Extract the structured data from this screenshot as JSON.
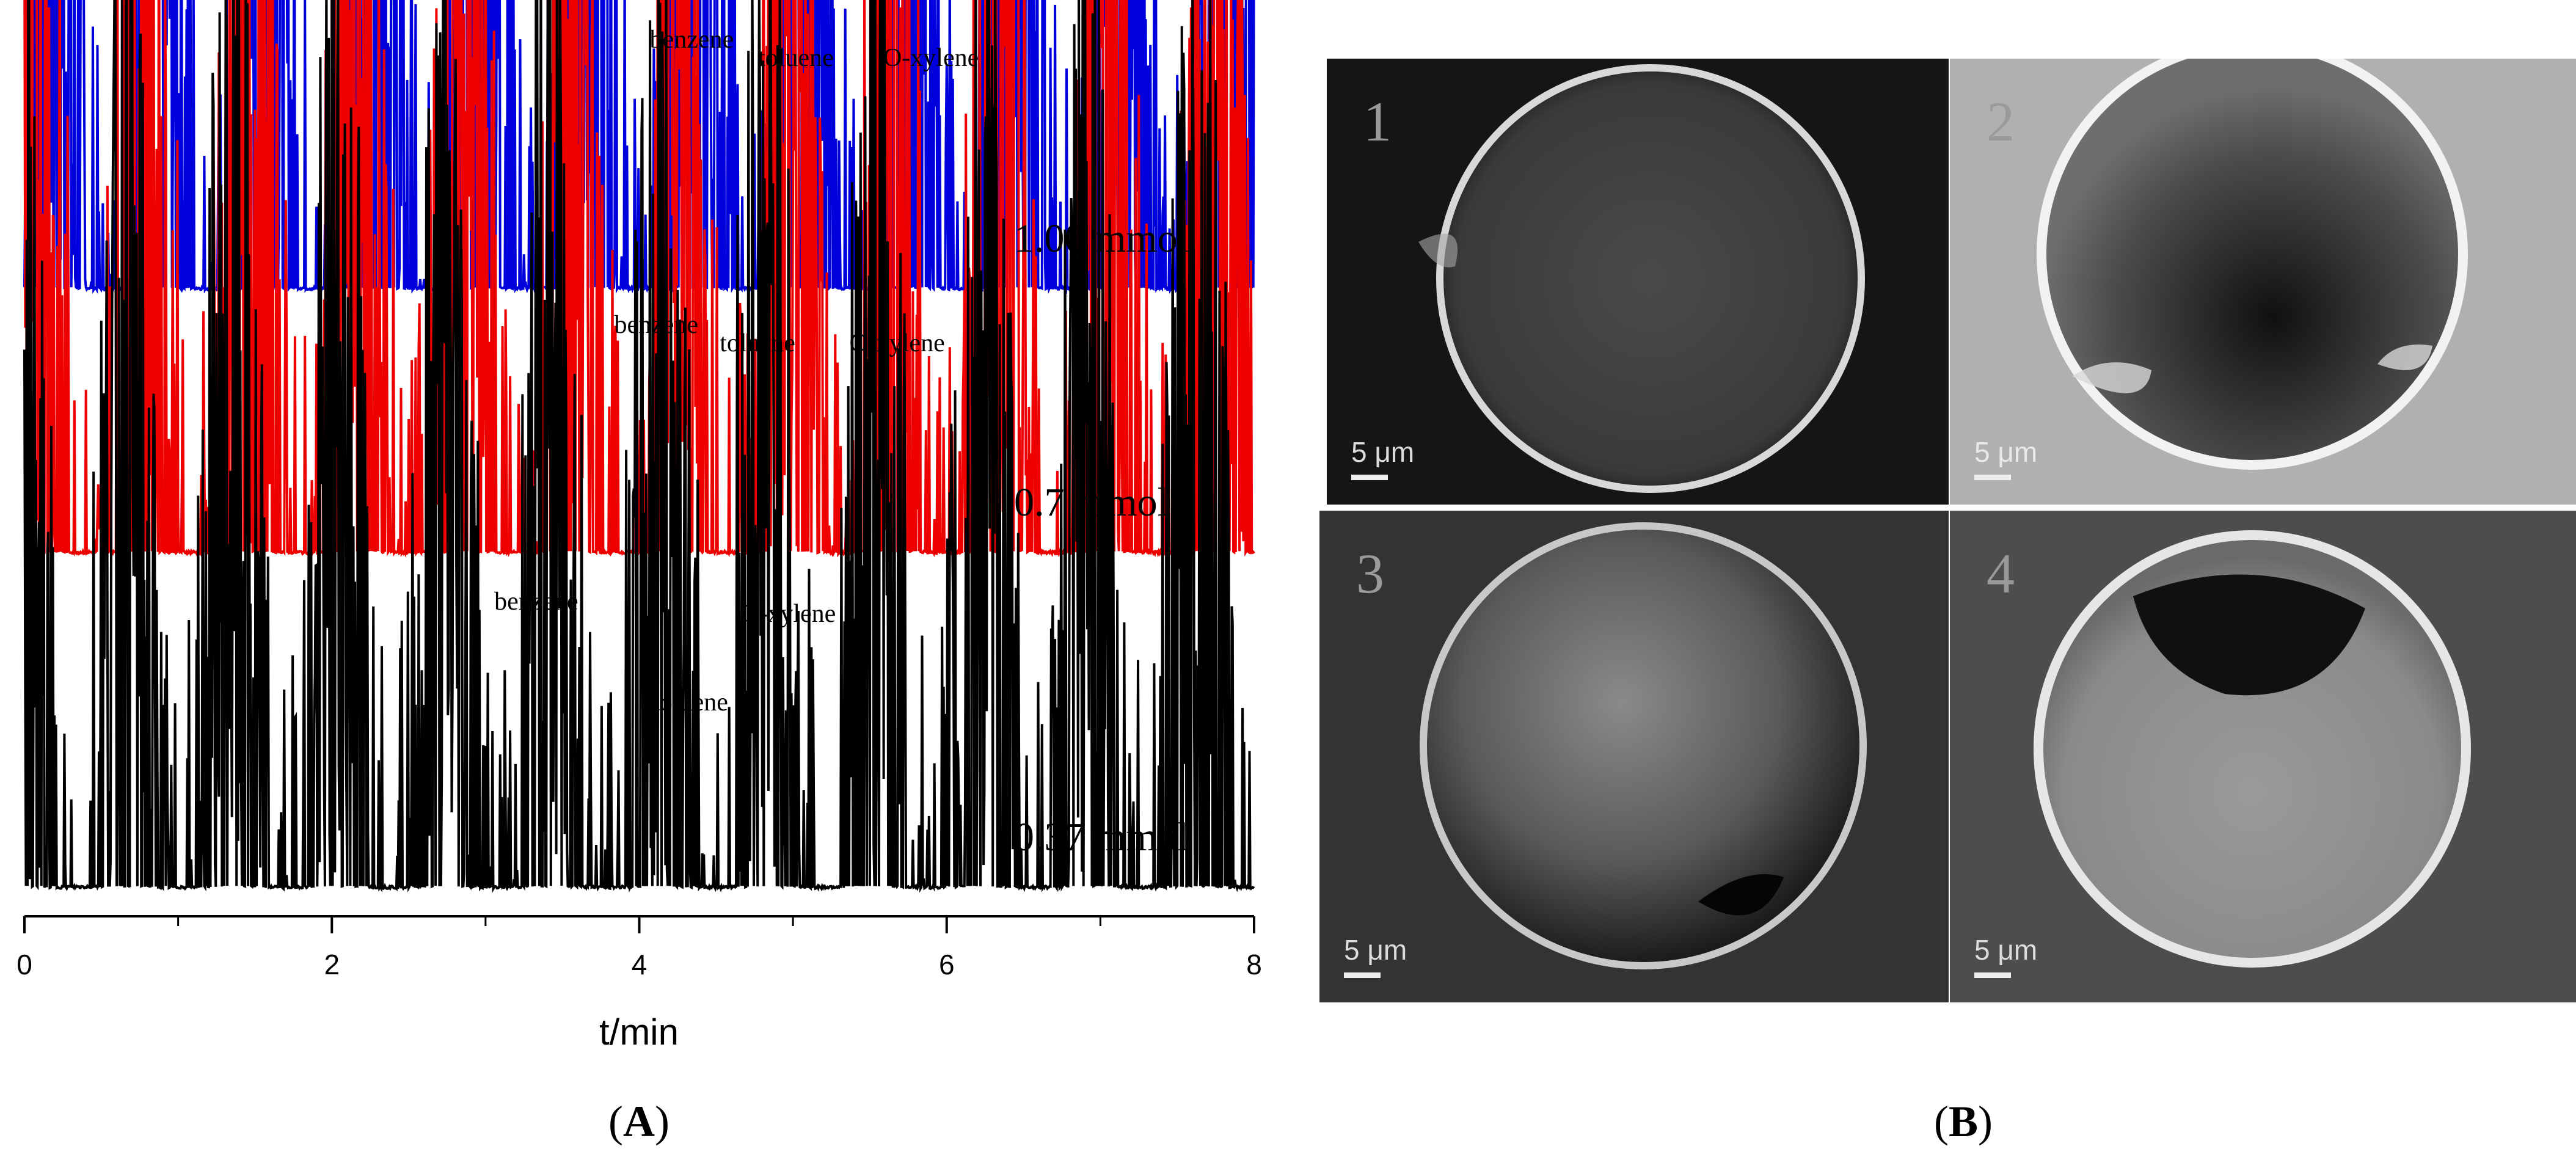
{
  "panel_labels": {
    "a": "A",
    "b": "B"
  },
  "chart_data": {
    "type": "line",
    "xlabel": "t/min",
    "ylabel": "",
    "xlim": [
      0,
      8
    ],
    "xticks": [
      0,
      2,
      4,
      6,
      8
    ],
    "xtick_labels": [
      "0",
      "2",
      "4",
      "6",
      "8"
    ],
    "series": [
      {
        "name": "1.00 mmol",
        "color": "#0000dd",
        "peaks": [
          {
            "label": "benzene",
            "t": 4.6,
            "height": 1.0
          },
          {
            "label": "toluene",
            "t": 4.9,
            "height": 1.0
          },
          {
            "label": "O-xylene",
            "t": 5.6,
            "height": 1.0
          }
        ]
      },
      {
        "name": "0.7 mmol",
        "color": "#ee0000",
        "peaks": [
          {
            "label": "benzene",
            "t": 4.15,
            "height": 0.9
          },
          {
            "label": "toluene",
            "t": 4.65,
            "height": 0.9
          },
          {
            "label": "O-xylene",
            "t": 5.28,
            "height": 0.9
          }
        ]
      },
      {
        "name": "0.37 mmol",
        "color": "#000000",
        "peaks": [
          {
            "label": "benzene",
            "t": 3.33,
            "height": 1.2
          },
          {
            "label": "toluene",
            "t": 4.65,
            "height": 0.9
          },
          {
            "label": "O-xylene",
            "t": 4.73,
            "height": 1.1
          }
        ]
      }
    ]
  },
  "sem_images": [
    {
      "number": "1",
      "scale": "5 μm"
    },
    {
      "number": "2",
      "scale": "5 μm"
    },
    {
      "number": "3",
      "scale": "5 μm"
    },
    {
      "number": "4",
      "scale": "5 μm"
    }
  ]
}
